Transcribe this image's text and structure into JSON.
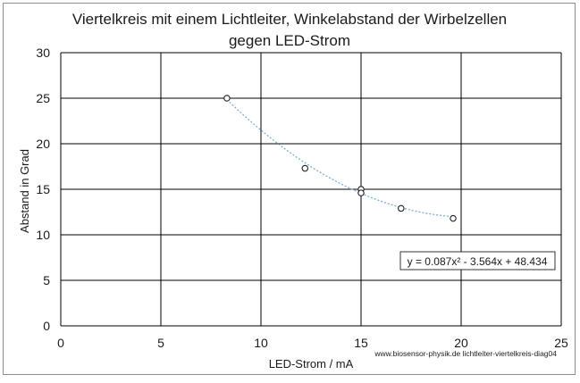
{
  "chart_data": {
    "type": "scatter",
    "title_line1": "Viertelkreis mit einem Lichtleiter, Winkelabstand der Wirbelzellen",
    "title_line2": "gegen LED-Strom",
    "xlabel": "LED-Strom / mA",
    "ylabel": "Abstand  in Grad",
    "xlim": [
      0,
      25
    ],
    "ylim": [
      0,
      30
    ],
    "x_ticks": [
      0,
      5,
      10,
      15,
      20,
      25
    ],
    "y_ticks": [
      0,
      5,
      10,
      15,
      20,
      25,
      30
    ],
    "grid": true,
    "points": [
      {
        "x": 8.3,
        "y": 25.0
      },
      {
        "x": 12.2,
        "y": 17.3
      },
      {
        "x": 15.0,
        "y": 15.0
      },
      {
        "x": 15.0,
        "y": 14.6
      },
      {
        "x": 17.0,
        "y": 12.9
      },
      {
        "x": 19.6,
        "y": 11.8
      }
    ],
    "trendline": {
      "type": "polynomial-2",
      "coefficients": [
        0.087,
        -3.564,
        48.434
      ],
      "x_range": [
        8.3,
        19.6
      ],
      "label": "y = 0.087x² - 3.564x + 48.434",
      "color": "#6fa8dc"
    },
    "marker_color": "#222222",
    "source_note": "www.biosensor-physik.de lichtleiter-viertelkreis-diag04"
  }
}
